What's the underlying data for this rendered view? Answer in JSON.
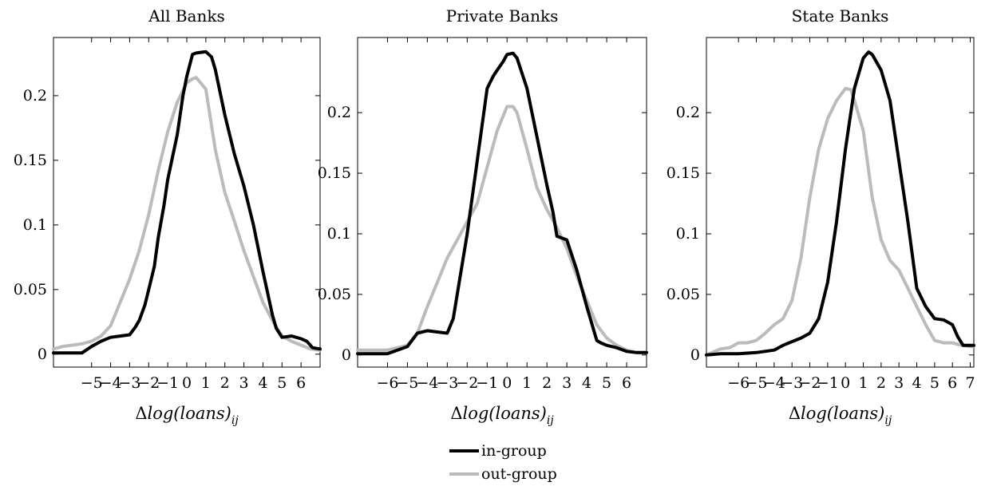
{
  "chart_data": [
    {
      "type": "line",
      "title": "All Banks",
      "xlabel": "Δlog(loans)ij",
      "xlim": [
        -7,
        7
      ],
      "ylim": [
        -0.01,
        0.245
      ],
      "xticks": [
        -5,
        -4,
        -3,
        -2,
        -1,
        0,
        1,
        2,
        3,
        4,
        5,
        6
      ],
      "yticks": [
        0,
        0.05,
        0.1,
        0.15,
        0.2
      ],
      "ytick_labels": [
        "0",
        "0.05",
        "0.1",
        "0.15",
        "0.2"
      ],
      "series": [
        {
          "name": "in-group",
          "color": "#000000",
          "x": [
            -7,
            -6,
            -5.5,
            -5,
            -4.5,
            -4,
            -3.5,
            -3,
            -2.7,
            -2.5,
            -2.2,
            -2,
            -1.7,
            -1.5,
            -1.2,
            -1,
            -0.5,
            -0.2,
            0,
            0.3,
            0.5,
            1,
            1.3,
            1.5,
            2,
            2.5,
            3,
            3.5,
            4,
            4.5,
            4.7,
            5,
            5.5,
            6,
            6.3,
            6.6,
            7
          ],
          "y": [
            0.001,
            0.001,
            0.001,
            0.006,
            0.01,
            0.013,
            0.014,
            0.015,
            0.021,
            0.026,
            0.038,
            0.05,
            0.068,
            0.09,
            0.115,
            0.135,
            0.17,
            0.2,
            0.215,
            0.232,
            0.233,
            0.234,
            0.23,
            0.22,
            0.185,
            0.155,
            0.13,
            0.1,
            0.064,
            0.03,
            0.02,
            0.013,
            0.014,
            0.012,
            0.01,
            0.005,
            0.004
          ]
        },
        {
          "name": "out-group",
          "color": "#bbbbbb",
          "x": [
            -7,
            -6.5,
            -6,
            -5.5,
            -5,
            -4.5,
            -4,
            -3.5,
            -3,
            -2.5,
            -2,
            -1.5,
            -1,
            -0.5,
            0,
            0.3,
            0.5,
            1,
            1.5,
            2,
            2.5,
            3,
            3.5,
            4,
            4.5,
            5,
            5.5,
            6,
            6.5,
            7
          ],
          "y": [
            0.004,
            0.006,
            0.007,
            0.008,
            0.01,
            0.014,
            0.022,
            0.04,
            0.058,
            0.08,
            0.108,
            0.142,
            0.172,
            0.195,
            0.21,
            0.213,
            0.214,
            0.205,
            0.158,
            0.125,
            0.103,
            0.08,
            0.06,
            0.04,
            0.026,
            0.014,
            0.01,
            0.007,
            0.004,
            0.003
          ]
        }
      ]
    },
    {
      "type": "line",
      "title": "Private Banks",
      "xlabel": "Δlog(loans)ij",
      "xlim": [
        -7.5,
        7
      ],
      "ylim": [
        -0.01,
        0.262
      ],
      "xticks": [
        -6,
        -5,
        -4,
        -3,
        -2,
        -1,
        0,
        1,
        2,
        3,
        4,
        5,
        6
      ],
      "yticks": [
        0,
        0.05,
        0.1,
        0.15,
        0.2
      ],
      "ytick_labels": [
        "0",
        "0.05",
        "0.1",
        "0.15",
        "0.2"
      ],
      "series": [
        {
          "name": "in-group",
          "color": "#000000",
          "x": [
            -7.5,
            -7,
            -6.5,
            -6,
            -5.5,
            -5,
            -4.5,
            -4,
            -3.5,
            -3,
            -2.7,
            -2.5,
            -2,
            -1.5,
            -1,
            -0.7,
            -0.5,
            -0.2,
            0,
            0.3,
            0.5,
            1,
            1.5,
            2,
            2.3,
            2.5,
            3,
            3.5,
            4,
            4.5,
            4.7,
            5,
            5.5,
            6,
            6.5,
            7
          ],
          "y": [
            0.001,
            0.001,
            0.001,
            0.001,
            0.004,
            0.007,
            0.018,
            0.02,
            0.019,
            0.018,
            0.03,
            0.05,
            0.1,
            0.16,
            0.22,
            0.23,
            0.235,
            0.242,
            0.248,
            0.249,
            0.245,
            0.22,
            0.18,
            0.14,
            0.118,
            0.098,
            0.095,
            0.07,
            0.04,
            0.012,
            0.01,
            0.008,
            0.006,
            0.003,
            0.002,
            0.002
          ]
        },
        {
          "name": "out-group",
          "color": "#bbbbbb",
          "x": [
            -7.5,
            -7,
            -6.5,
            -6,
            -5.5,
            -5,
            -4.5,
            -4,
            -3.5,
            -3,
            -2.5,
            -2,
            -1.5,
            -1,
            -0.5,
            0,
            0.3,
            0.5,
            1,
            1.5,
            2,
            2.5,
            3,
            3.5,
            4,
            4.5,
            5,
            5.5,
            6,
            6.5,
            7
          ],
          "y": [
            0.004,
            0.004,
            0.004,
            0.004,
            0.006,
            0.008,
            0.018,
            0.04,
            0.06,
            0.08,
            0.095,
            0.11,
            0.125,
            0.155,
            0.185,
            0.205,
            0.205,
            0.2,
            0.17,
            0.138,
            0.12,
            0.105,
            0.088,
            0.065,
            0.045,
            0.025,
            0.014,
            0.008,
            0.004,
            0.002,
            0.002
          ]
        }
      ]
    },
    {
      "type": "line",
      "title": "State Banks",
      "xlabel": "Δlog(loans)ij",
      "xlim": [
        -7.8,
        7.2
      ],
      "ylim": [
        -0.01,
        0.262
      ],
      "xticks": [
        -6,
        -5,
        -4,
        -3,
        -2,
        -1,
        0,
        1,
        2,
        3,
        4,
        5,
        6,
        7
      ],
      "yticks": [
        0,
        0.05,
        0.1,
        0.15,
        0.2
      ],
      "ytick_labels": [
        "0",
        "0.05",
        "0.1",
        "0.15",
        "0.2"
      ],
      "series": [
        {
          "name": "in-group",
          "color": "#000000",
          "x": [
            -7.8,
            -7,
            -6,
            -5,
            -4,
            -3.5,
            -3,
            -2.5,
            -2,
            -1.5,
            -1,
            -0.5,
            0,
            0.5,
            1,
            1.3,
            1.5,
            2,
            2.5,
            3,
            3.5,
            4,
            4.5,
            5,
            5.5,
            6,
            6.3,
            6.6,
            7,
            7.2
          ],
          "y": [
            0.0,
            0.001,
            0.001,
            0.002,
            0.004,
            0.008,
            0.011,
            0.014,
            0.018,
            0.03,
            0.06,
            0.11,
            0.17,
            0.22,
            0.245,
            0.25,
            0.248,
            0.235,
            0.21,
            0.16,
            0.11,
            0.055,
            0.04,
            0.03,
            0.029,
            0.025,
            0.015,
            0.008,
            0.008,
            0.008
          ]
        },
        {
          "name": "out-group",
          "color": "#bbbbbb",
          "x": [
            -7.8,
            -7,
            -6.5,
            -6,
            -5.5,
            -5,
            -4.5,
            -4,
            -3.5,
            -3,
            -2.5,
            -2,
            -1.5,
            -1,
            -0.5,
            0,
            0.3,
            0.5,
            1,
            1.5,
            2,
            2.5,
            3,
            3.5,
            4,
            4.5,
            5,
            5.5,
            6,
            6.5,
            7,
            7.2
          ],
          "y": [
            0.0,
            0.005,
            0.006,
            0.01,
            0.01,
            0.012,
            0.018,
            0.025,
            0.03,
            0.045,
            0.08,
            0.13,
            0.17,
            0.195,
            0.21,
            0.22,
            0.219,
            0.21,
            0.185,
            0.13,
            0.095,
            0.078,
            0.07,
            0.055,
            0.04,
            0.025,
            0.012,
            0.01,
            0.01,
            0.008,
            0.007,
            0.007
          ]
        }
      ]
    }
  ],
  "legend": {
    "placement": "bottom-center",
    "items": [
      {
        "label": "in-group",
        "color": "#000000"
      },
      {
        "label": "out-group",
        "color": "#bbbbbb"
      }
    ]
  }
}
